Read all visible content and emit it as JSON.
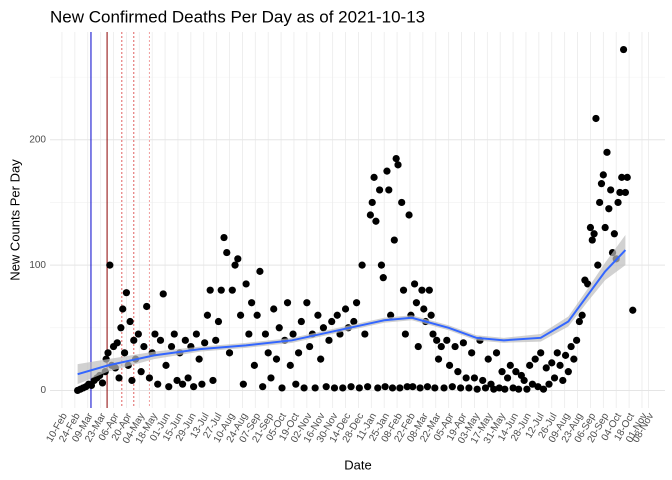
{
  "chart_data": {
    "type": "scatter",
    "title": "New Confirmed Deaths Per Day as of 2021-10-13",
    "x_label": "Date",
    "y_label": "New Counts Per Day",
    "xlim": [
      -13,
      655
    ],
    "ylim": [
      -14,
      286
    ],
    "yticks": [
      0,
      100,
      200
    ],
    "yminor": [
      50,
      150,
      250
    ],
    "grid": true,
    "color": "#000000",
    "xticks": [
      {
        "value": 0,
        "label": "10-Feb"
      },
      {
        "value": 14,
        "label": "24-Feb"
      },
      {
        "value": 28,
        "label": "09-Mar"
      },
      {
        "value": 42,
        "label": "23-Mar"
      },
      {
        "value": 56,
        "label": "06-Apr"
      },
      {
        "value": 70,
        "label": "20-Apr"
      },
      {
        "value": 84,
        "label": "04-May"
      },
      {
        "value": 98,
        "label": "18-May"
      },
      {
        "value": 112,
        "label": "01-Jun"
      },
      {
        "value": 126,
        "label": "15-Jun"
      },
      {
        "value": 140,
        "label": "29-Jun"
      },
      {
        "value": 154,
        "label": "13-Jul"
      },
      {
        "value": 168,
        "label": "27-Jul"
      },
      {
        "value": 182,
        "label": "10-Aug"
      },
      {
        "value": 196,
        "label": "24-Aug"
      },
      {
        "value": 210,
        "label": "07-Sep"
      },
      {
        "value": 224,
        "label": "21-Sep"
      },
      {
        "value": 238,
        "label": "05-Oct"
      },
      {
        "value": 252,
        "label": "19-Oct"
      },
      {
        "value": 266,
        "label": "02-Nov"
      },
      {
        "value": 280,
        "label": "16-Nov"
      },
      {
        "value": 294,
        "label": "30-Nov"
      },
      {
        "value": 308,
        "label": "14-Dec"
      },
      {
        "value": 322,
        "label": "28-Dec"
      },
      {
        "value": 336,
        "label": "11-Jan"
      },
      {
        "value": 350,
        "label": "25-Jan"
      },
      {
        "value": 364,
        "label": "08-Feb"
      },
      {
        "value": 378,
        "label": "22-Feb"
      },
      {
        "value": 392,
        "label": "08-Mar"
      },
      {
        "value": 406,
        "label": "22-Mar"
      },
      {
        "value": 420,
        "label": "05-Apr"
      },
      {
        "value": 434,
        "label": "19-Apr"
      },
      {
        "value": 448,
        "label": "03-May"
      },
      {
        "value": 462,
        "label": "17-May"
      },
      {
        "value": 476,
        "label": "31-May"
      },
      {
        "value": 490,
        "label": "14-Jun"
      },
      {
        "value": 504,
        "label": "28-Jun"
      },
      {
        "value": 518,
        "label": "12-Jul"
      },
      {
        "value": 532,
        "label": "26-Jul"
      },
      {
        "value": 546,
        "label": "09-Aug"
      },
      {
        "value": 560,
        "label": "23-Aug"
      },
      {
        "value": 574,
        "label": "06-Sep"
      },
      {
        "value": 588,
        "label": "20-Sep"
      },
      {
        "value": 602,
        "label": "04-Oct"
      },
      {
        "value": 616,
        "label": "18-Oct"
      },
      {
        "value": 630,
        "label": "01-Nov"
      },
      {
        "value": 637,
        "label": "08-Nov"
      }
    ],
    "x": [
      17,
      20,
      23,
      26,
      29,
      32,
      35,
      38,
      41,
      44,
      47,
      48,
      50,
      52,
      54,
      56,
      58,
      60,
      62,
      64,
      66,
      68,
      70,
      72,
      74,
      76,
      78,
      80,
      83,
      86,
      89,
      92,
      95,
      98,
      101,
      104,
      107,
      110,
      113,
      116,
      119,
      122,
      125,
      128,
      131,
      134,
      137,
      140,
      143,
      146,
      149,
      152,
      155,
      158,
      161,
      164,
      167,
      170,
      173,
      176,
      179,
      182,
      185,
      188,
      191,
      194,
      197,
      200,
      203,
      206,
      209,
      212,
      215,
      218,
      221,
      224,
      227,
      230,
      233,
      236,
      239,
      242,
      245,
      248,
      251,
      254,
      257,
      260,
      263,
      266,
      269,
      272,
      275,
      278,
      281,
      284,
      287,
      290,
      293,
      296,
      299,
      302,
      305,
      308,
      311,
      314,
      317,
      320,
      323,
      326,
      329,
      332,
      335,
      337,
      339,
      341,
      343,
      345,
      347,
      349,
      351,
      353,
      355,
      357,
      359,
      361,
      363,
      365,
      367,
      369,
      371,
      373,
      375,
      377,
      379,
      381,
      383,
      385,
      387,
      389,
      391,
      393,
      395,
      397,
      399,
      401,
      403,
      405,
      407,
      409,
      412,
      415,
      418,
      421,
      424,
      427,
      430,
      433,
      436,
      439,
      442,
      445,
      448,
      451,
      454,
      457,
      460,
      463,
      466,
      469,
      472,
      475,
      478,
      481,
      484,
      487,
      490,
      493,
      496,
      499,
      502,
      505,
      508,
      511,
      514,
      517,
      520,
      523,
      526,
      529,
      532,
      535,
      538,
      541,
      544,
      547,
      550,
      553,
      556,
      559,
      562,
      565,
      568,
      571,
      574,
      576,
      578,
      580,
      582,
      584,
      586,
      588,
      590,
      592,
      594,
      596,
      598,
      600,
      602,
      604,
      606,
      608,
      610,
      612,
      614,
      620
    ],
    "values": [
      0,
      1,
      2,
      3,
      5,
      4,
      8,
      10,
      12,
      6,
      15,
      25,
      30,
      100,
      20,
      35,
      18,
      38,
      10,
      50,
      65,
      30,
      78,
      20,
      55,
      8,
      40,
      25,
      45,
      15,
      35,
      67,
      10,
      30,
      45,
      5,
      40,
      77,
      20,
      3,
      35,
      45,
      8,
      30,
      5,
      40,
      10,
      35,
      3,
      45,
      25,
      5,
      38,
      60,
      80,
      8,
      40,
      55,
      80,
      122,
      110,
      30,
      80,
      100,
      105,
      60,
      5,
      85,
      45,
      70,
      20,
      60,
      95,
      3,
      45,
      30,
      10,
      65,
      25,
      50,
      2,
      40,
      70,
      20,
      45,
      5,
      30,
      55,
      2,
      70,
      35,
      45,
      2,
      60,
      25,
      50,
      3,
      40,
      55,
      2,
      60,
      45,
      2,
      65,
      50,
      3,
      55,
      70,
      2,
      100,
      45,
      3,
      140,
      150,
      170,
      135,
      2,
      160,
      100,
      90,
      3,
      175,
      160,
      60,
      2,
      120,
      185,
      180,
      2,
      150,
      80,
      45,
      3,
      140,
      60,
      3,
      85,
      70,
      35,
      2,
      80,
      65,
      55,
      3,
      80,
      60,
      45,
      2,
      40,
      25,
      35,
      2,
      40,
      20,
      3,
      35,
      15,
      2,
      38,
      10,
      2,
      30,
      10,
      1,
      40,
      8,
      2,
      25,
      5,
      1,
      30,
      2,
      15,
      1,
      10,
      20,
      2,
      15,
      1,
      12,
      8,
      1,
      20,
      5,
      25,
      3,
      30,
      1,
      18,
      5,
      22,
      10,
      30,
      20,
      8,
      28,
      15,
      35,
      25,
      40,
      55,
      60,
      88,
      85,
      130,
      120,
      125,
      217,
      100,
      150,
      165,
      172,
      130,
      190,
      145,
      160,
      110,
      125,
      105,
      150,
      158,
      170,
      272,
      158,
      170,
      64
    ],
    "smooth": {
      "color": "#3366ff",
      "band_color": "#bdbdbd",
      "x": [
        17,
        50,
        100,
        150,
        200,
        250,
        300,
        350,
        380,
        420,
        450,
        480,
        520,
        550,
        570,
        590,
        612
      ],
      "values": [
        13,
        20,
        28,
        33,
        36,
        40,
        48,
        56,
        58,
        50,
        42,
        40,
        42,
        55,
        75,
        95,
        112
      ],
      "band_lower": [
        5,
        15,
        25,
        31,
        34,
        38,
        46,
        54,
        56,
        48,
        40,
        38,
        39,
        51,
        70,
        88,
        100
      ],
      "band_upper": [
        21,
        25,
        31,
        35,
        38,
        42,
        50,
        58,
        60,
        52,
        44,
        42,
        45,
        59,
        80,
        102,
        124
      ]
    },
    "vlines": [
      {
        "x": 31.5,
        "color": "#0000cc",
        "dash": false
      },
      {
        "x": 49,
        "color": "#8b0000",
        "dash": false
      },
      {
        "x": 65,
        "color": "#e06060",
        "dash": true
      },
      {
        "x": 78,
        "color": "#e06060",
        "dash": true
      },
      {
        "x": 95,
        "color": "#f0a0a0",
        "dash": true
      }
    ]
  }
}
